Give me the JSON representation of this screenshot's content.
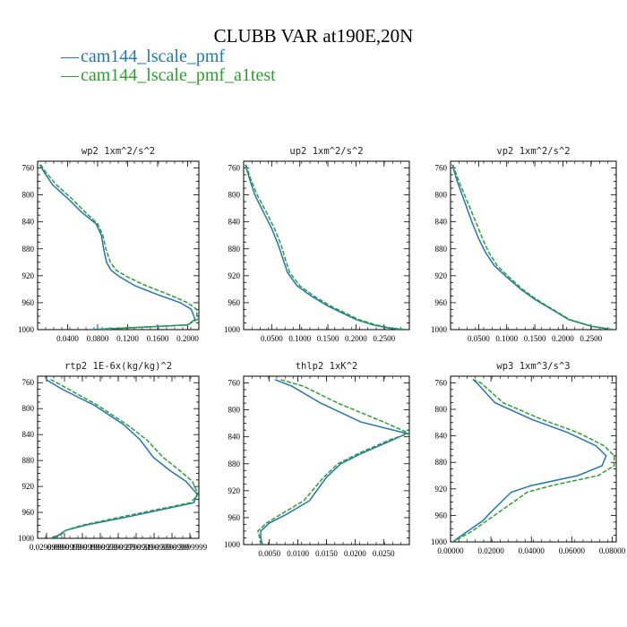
{
  "figure": {
    "title": "CLUBB VAR at190E,20N",
    "legend": [
      {
        "label": "cam144_lscale_pmf",
        "color": "#1f77b4",
        "style": "solid"
      },
      {
        "label": "cam144_lscale_pmf_a1test",
        "color": "#2ca02c",
        "style": "dashed"
      }
    ]
  },
  "chart_data": [
    {
      "type": "line",
      "title": "wp2  1xm^2/s^2",
      "ylim": [
        1000,
        750
      ],
      "xlim": [
        0.0,
        0.215
      ],
      "yticks": [
        "760",
        "800",
        "840",
        "880",
        "920",
        "960",
        "1000"
      ],
      "xticks": [
        "0.0400",
        "0.0800",
        "0.1200",
        "0.1600",
        "0.2000"
      ],
      "series": [
        {
          "name": "cam144_lscale_pmf",
          "x": [
            0.003,
            0.008,
            0.02,
            0.04,
            0.058,
            0.078,
            0.085,
            0.088,
            0.092,
            0.098,
            0.11,
            0.13,
            0.16,
            0.19,
            0.205,
            0.21,
            0.2,
            0.07
          ],
          "y": [
            755,
            765,
            785,
            805,
            825,
            843,
            860,
            880,
            900,
            912,
            922,
            935,
            948,
            960,
            970,
            985,
            993,
            1000
          ]
        },
        {
          "name": "cam144_lscale_pmf_a1test",
          "x": [
            0.004,
            0.01,
            0.025,
            0.045,
            0.063,
            0.08,
            0.087,
            0.091,
            0.097,
            0.105,
            0.12,
            0.145,
            0.175,
            0.2,
            0.212,
            0.213,
            0.2,
            0.08
          ],
          "y": [
            755,
            765,
            785,
            805,
            825,
            843,
            860,
            880,
            900,
            912,
            922,
            935,
            948,
            960,
            970,
            985,
            993,
            1000
          ]
        }
      ]
    },
    {
      "type": "line",
      "title": "up2  1xm^2/s^2",
      "ylim": [
        1000,
        750
      ],
      "xlim": [
        0.0,
        0.295
      ],
      "yticks": [
        "760",
        "800",
        "840",
        "880",
        "920",
        "960",
        "1000"
      ],
      "xticks": [
        "0.0500",
        "0.1000",
        "0.1500",
        "0.2000",
        "0.2500"
      ],
      "series": [
        {
          "name": "cam144_lscale_pmf",
          "x": [
            0.003,
            0.01,
            0.02,
            0.035,
            0.05,
            0.062,
            0.07,
            0.078,
            0.095,
            0.12,
            0.15,
            0.175,
            0.2,
            0.23,
            0.26,
            0.29
          ],
          "y": [
            755,
            775,
            800,
            825,
            850,
            875,
            895,
            915,
            935,
            950,
            965,
            975,
            985,
            993,
            998,
            1000
          ]
        },
        {
          "name": "cam144_lscale_pmf_a1test",
          "x": [
            0.004,
            0.012,
            0.024,
            0.04,
            0.055,
            0.067,
            0.074,
            0.082,
            0.1,
            0.125,
            0.155,
            0.18,
            0.205,
            0.235,
            0.265,
            0.29
          ],
          "y": [
            755,
            775,
            800,
            825,
            850,
            875,
            895,
            915,
            935,
            950,
            965,
            975,
            985,
            993,
            998,
            1000
          ]
        }
      ]
    },
    {
      "type": "line",
      "title": "vp2  1xm^2/s^2",
      "ylim": [
        1000,
        750
      ],
      "xlim": [
        0.0,
        0.295
      ],
      "yticks": [
        "760",
        "800",
        "840",
        "880",
        "920",
        "960",
        "1000"
      ],
      "xticks": [
        "0.0500",
        "0.1000",
        "0.1500",
        "0.2000",
        "0.2500"
      ],
      "series": [
        {
          "name": "cam144_lscale_pmf",
          "x": [
            0.003,
            0.012,
            0.025,
            0.038,
            0.05,
            0.062,
            0.078,
            0.1,
            0.125,
            0.15,
            0.18,
            0.21,
            0.25,
            0.29
          ],
          "y": [
            755,
            780,
            810,
            840,
            865,
            885,
            905,
            922,
            940,
            955,
            970,
            985,
            995,
            1000
          ]
        },
        {
          "name": "cam144_lscale_pmf_a1test",
          "x": [
            0.004,
            0.015,
            0.03,
            0.045,
            0.057,
            0.068,
            0.083,
            0.104,
            0.128,
            0.153,
            0.182,
            0.212,
            0.252,
            0.29
          ],
          "y": [
            755,
            780,
            810,
            840,
            865,
            885,
            905,
            922,
            940,
            955,
            970,
            985,
            995,
            1000
          ]
        }
      ]
    },
    {
      "type": "line",
      "title": "rtp2  1E-6x(kg/kg)^2",
      "ylim": [
        1000,
        750
      ],
      "xlim": [
        0.0005,
        0.05
      ],
      "yticks": [
        "760",
        "800",
        "840",
        "880",
        "920",
        "960",
        "1000"
      ],
      "xticks": [
        "0.0299999",
        "0.0999999",
        "0.1599999",
        "0.1999999",
        "0.2399999",
        "0.2799999",
        "0.3199999",
        "0.3599999",
        "0.3999999"
      ],
      "series": [
        {
          "name": "cam144_lscale_pmf",
          "x": [
            0.003,
            0.008,
            0.018,
            0.027,
            0.032,
            0.036,
            0.041,
            0.046,
            0.0495,
            0.0485,
            0.03,
            0.015,
            0.009,
            0.007,
            0.0045
          ],
          "y": [
            755,
            770,
            795,
            825,
            848,
            875,
            895,
            912,
            932,
            945,
            965,
            980,
            988,
            995,
            1000
          ]
        },
        {
          "name": "cam144_lscale_pmf_a1test",
          "x": [
            0.0045,
            0.01,
            0.019,
            0.028,
            0.034,
            0.039,
            0.044,
            0.048,
            0.0498,
            0.0475,
            0.028,
            0.014,
            0.009,
            0.0075,
            0.0055
          ],
          "y": [
            755,
            770,
            795,
            825,
            848,
            875,
            895,
            912,
            932,
            945,
            965,
            980,
            988,
            995,
            1000
          ]
        }
      ]
    },
    {
      "type": "line",
      "title": "thlp2  1xK^2",
      "ylim": [
        1000,
        750
      ],
      "xlim": [
        0.0005,
        0.0295
      ],
      "yticks": [
        "760",
        "800",
        "840",
        "880",
        "920",
        "960",
        "1000"
      ],
      "xticks": [
        "0.0050",
        "0.0100",
        "0.0150",
        "0.0200",
        "0.0250"
      ],
      "series": [
        {
          "name": "cam144_lscale_pmf",
          "x": [
            0.006,
            0.009,
            0.014,
            0.021,
            0.029,
            0.027,
            0.021,
            0.0175,
            0.015,
            0.012,
            0.008,
            0.005,
            0.0035,
            0.0035,
            0.0038
          ],
          "y": [
            755,
            765,
            790,
            818,
            835,
            843,
            865,
            880,
            900,
            935,
            955,
            968,
            980,
            990,
            1000
          ]
        },
        {
          "name": "cam144_lscale_pmf_a1test",
          "x": [
            0.007,
            0.011,
            0.017,
            0.025,
            0.0295,
            0.0265,
            0.0205,
            0.017,
            0.0145,
            0.011,
            0.007,
            0.0045,
            0.003,
            0.0033,
            0.0035
          ],
          "y": [
            755,
            765,
            790,
            818,
            835,
            843,
            865,
            880,
            900,
            935,
            955,
            968,
            980,
            990,
            1000
          ]
        }
      ]
    },
    {
      "type": "line",
      "title": "wp3  1xm^3/s^3",
      "ylim": [
        1000,
        750
      ],
      "xlim": [
        0.0,
        0.082
      ],
      "yticks": [
        "760",
        "800",
        "840",
        "880",
        "920",
        "960",
        "1000"
      ],
      "xticks": [
        "0.00000",
        "0.02000",
        "0.04000",
        "0.06000",
        "0.08000"
      ],
      "series": [
        {
          "name": "cam144_lscale_pmf",
          "x": [
            0.011,
            0.013,
            0.022,
            0.04,
            0.058,
            0.072,
            0.077,
            0.075,
            0.063,
            0.04,
            0.03,
            0.025,
            0.02,
            0.016,
            0.008,
            0.001
          ],
          "y": [
            755,
            760,
            790,
            815,
            835,
            855,
            870,
            885,
            900,
            915,
            925,
            940,
            955,
            968,
            985,
            1000
          ]
        },
        {
          "name": "cam144_lscale_pmf_a1test",
          "x": [
            0.011,
            0.015,
            0.026,
            0.045,
            0.063,
            0.076,
            0.081,
            0.081,
            0.073,
            0.05,
            0.038,
            0.031,
            0.024,
            0.018,
            0.01,
            0.001
          ],
          "y": [
            755,
            760,
            790,
            815,
            835,
            855,
            870,
            885,
            900,
            915,
            925,
            940,
            955,
            968,
            985,
            1000
          ]
        }
      ]
    }
  ]
}
